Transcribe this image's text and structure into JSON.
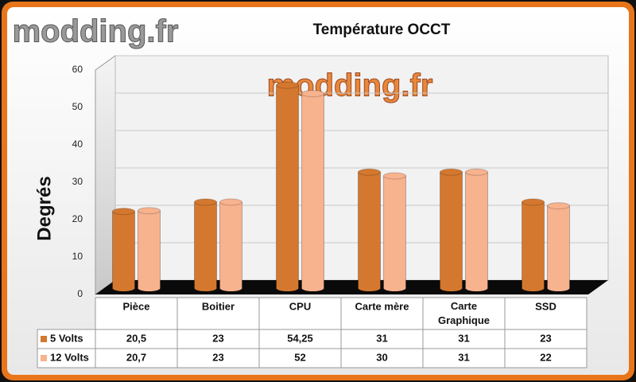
{
  "watermark": "modding.fr",
  "chart_data": {
    "type": "bar",
    "title": "Température OCCT",
    "y_label": "Degrés",
    "categories": [
      "Pièce",
      "Boitier",
      "CPU",
      "Carte mère",
      "Carte Graphique",
      "SSD"
    ],
    "series": [
      {
        "name": "5 Volts",
        "color": "#d4782f",
        "values": [
          20.5,
          23,
          54.25,
          31,
          31,
          23
        ],
        "value_labels": [
          "20,5",
          "23",
          "54,25",
          "31",
          "31",
          "23"
        ]
      },
      {
        "name": "12 Volts",
        "color": "#f7b28e",
        "values": [
          20.7,
          23,
          52,
          30,
          31,
          22
        ],
        "value_labels": [
          "20,7",
          "23",
          "52",
          "30",
          "31",
          "22"
        ]
      }
    ],
    "ylim": [
      0,
      60
    ],
    "yticks": [
      0,
      10,
      20,
      30,
      40,
      50,
      60
    ],
    "grid": true
  }
}
